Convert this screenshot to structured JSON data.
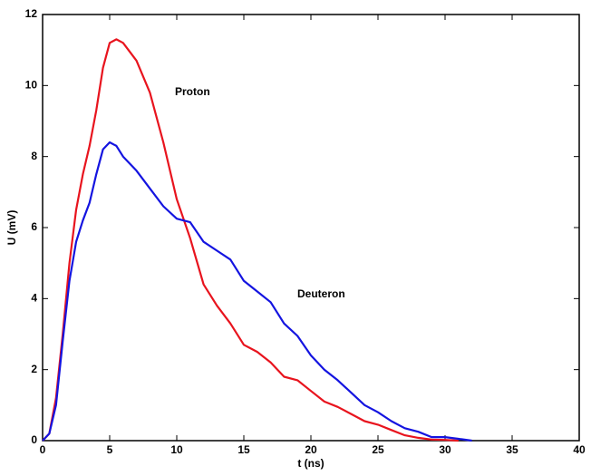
{
  "chart_data": {
    "type": "line",
    "x_label": "t (ns)",
    "y_label": "U (mV)",
    "xlim": [
      0,
      40
    ],
    "xticks": [
      0,
      5,
      10,
      15,
      20,
      25,
      30,
      35,
      40
    ],
    "ylim": [
      0,
      12
    ],
    "yticks": [
      0,
      2,
      4,
      6,
      8,
      10,
      12
    ],
    "series": [
      {
        "name": "Proton",
        "color": "#e8141e",
        "x": [
          0,
          0.5,
          1,
          1.5,
          2,
          2.5,
          3,
          3.5,
          4,
          4.5,
          5,
          5.5,
          6,
          7,
          8,
          9,
          10,
          11,
          12,
          13,
          14,
          15,
          16,
          17,
          18,
          19,
          20,
          21,
          22,
          23,
          24,
          25,
          26,
          27,
          28,
          29,
          30,
          31
        ],
        "values": [
          0,
          0.2,
          1.2,
          3.0,
          5.0,
          6.5,
          7.5,
          8.3,
          9.3,
          10.5,
          11.2,
          11.3,
          11.2,
          10.7,
          9.8,
          8.4,
          6.8,
          5.7,
          4.4,
          3.8,
          3.3,
          2.7,
          2.5,
          2.2,
          1.8,
          1.7,
          1.4,
          1.1,
          0.95,
          0.75,
          0.55,
          0.45,
          0.3,
          0.15,
          0.08,
          0.03,
          0.02,
          0
        ]
      },
      {
        "name": "Deuteron",
        "color": "#1414e0",
        "x": [
          0,
          0.5,
          1,
          1.5,
          2,
          2.5,
          3,
          3.5,
          4,
          4.5,
          5,
          5.5,
          6,
          7,
          8,
          9,
          10,
          11,
          12,
          13,
          14,
          15,
          16,
          17,
          18,
          19,
          20,
          21,
          22,
          23,
          24,
          25,
          26,
          27,
          28,
          29,
          30,
          31,
          32
        ],
        "values": [
          0,
          0.2,
          1.0,
          2.8,
          4.5,
          5.6,
          6.2,
          6.7,
          7.5,
          8.2,
          8.4,
          8.3,
          8.0,
          7.6,
          7.1,
          6.6,
          6.25,
          6.15,
          5.6,
          5.35,
          5.1,
          4.5,
          4.2,
          3.9,
          3.3,
          2.95,
          2.4,
          2.0,
          1.7,
          1.35,
          1.0,
          0.8,
          0.55,
          0.35,
          0.25,
          0.1,
          0.1,
          0.05,
          0
        ]
      }
    ]
  }
}
